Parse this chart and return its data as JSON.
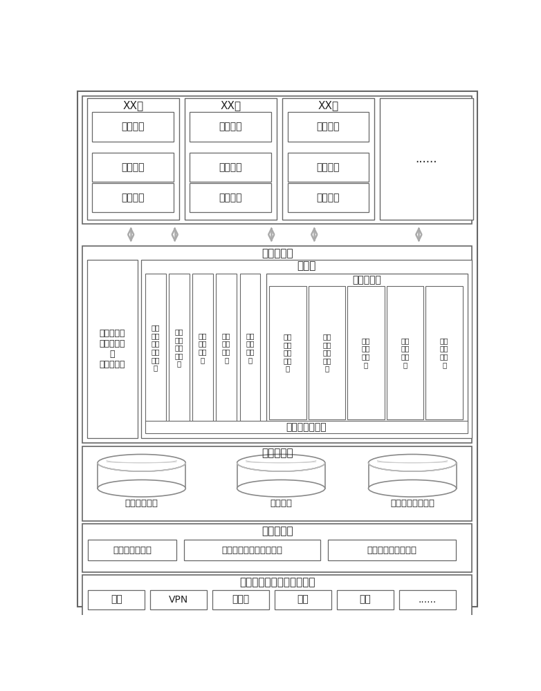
{
  "bg_color": "#ffffff",
  "border_color": "#666666",
  "light_border": "#888888",
  "text_color": "#222222",
  "cities": [
    "XX市",
    "XX市",
    "XX市"
  ],
  "city_boxes": [
    "监督中心",
    "指挥中心",
    "专业部门"
  ],
  "dots_label": "......",
  "cloud_center_label": "城管云中心",
  "app_layer_label": "应用层",
  "ext_system_label": "扩展子系统",
  "geo_code_label": "地理编码子系统",
  "cloud_data_label": "云数据中心",
  "app_maint_label": "应用维护层",
  "infra_label": "省级城管云中心基础设施层",
  "left_box_label": "监管数据无\n线采集子系\n统\n（城管通）",
  "app_layer_items": [
    "监管\n数据\n无线\n采集\n服务\n端",
    "监督\n中心\n受理\n子系\n统",
    "协同\n工作\n子系\n统",
    "监督\n指挥\n子系\n统",
    "综合\n评价\n子系\n统"
  ],
  "ext_items": [
    "地下\n管线\n信息\n子系\n统",
    "园林\n绿化\n管理\n子系\n统",
    "社会\n管理\n了系\n统",
    "数字\n执法\n了系\n统",
    "环卫\n管理\n了系\n统"
  ],
  "cloud_data_items": [
    "地理空间数据",
    "业务数据",
    "系统运行支持数据"
  ],
  "app_maint_items": [
    "应用维护了系统",
    "基础数据资源管理了系统",
    "基础设施管理了系统"
  ],
  "infra_items": [
    "网络",
    "VPN",
    "服务器",
    "存储",
    "安全",
    "......"
  ]
}
